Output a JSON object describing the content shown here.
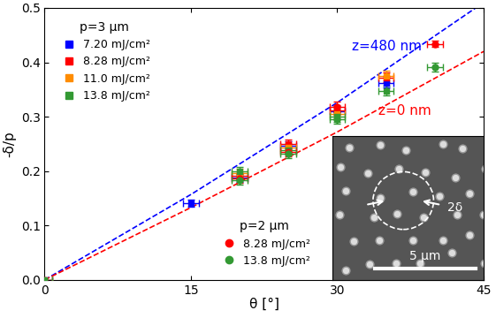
{
  "chart_data": {
    "type": "scatter",
    "x_label": "θ [°]",
    "y_label": "-δ/p",
    "xlim": [
      0,
      45
    ],
    "xticks": [
      0,
      15,
      30,
      45
    ],
    "ylim": [
      0.0,
      0.5
    ],
    "yticks": [
      0.0,
      0.1,
      0.2,
      0.3,
      0.4,
      0.5
    ],
    "groups": [
      {
        "title": "p=3 μm",
        "legend": "upper left",
        "marker": "square",
        "series": [
          {
            "name": "7.20 mJ/cm²",
            "color": "#0000ff",
            "x": [
              0,
              15,
              20,
              25,
              30,
              35
            ],
            "values": [
              0.0,
              0.141,
              0.188,
              0.246,
              0.31,
              0.362
            ],
            "xerr": [
              0.8,
              0.8,
              0.8,
              0.8,
              0.8,
              0.8
            ],
            "yerr": [
              0.003,
              0.006,
              0.008,
              0.008,
              0.009,
              0.009
            ]
          },
          {
            "name": "8.28 mJ/cm²",
            "color": "#ff0000",
            "x": [
              0,
              20,
              25,
              30,
              35
            ],
            "values": [
              0.0,
              0.192,
              0.25,
              0.312,
              0.372
            ],
            "xerr": [
              0.8,
              0.8,
              0.8,
              0.8,
              0.8
            ],
            "yerr": [
              0.003,
              0.008,
              0.008,
              0.009,
              0.009
            ]
          },
          {
            "name": "11.0 mJ/cm²",
            "color": "#ff8c00",
            "x": [
              0,
              20,
              25,
              30,
              35
            ],
            "values": [
              0.0,
              0.196,
              0.244,
              0.305,
              0.375
            ],
            "xerr": [
              0.8,
              0.8,
              0.8,
              0.8,
              0.8
            ],
            "yerr": [
              0.003,
              0.008,
              0.008,
              0.009,
              0.009
            ]
          },
          {
            "name": "13.8 mJ/cm²",
            "color": "#339933",
            "x": [
              0,
              20,
              25,
              30,
              35
            ],
            "values": [
              0.0,
              0.199,
              0.238,
              0.3,
              0.348
            ],
            "xerr": [
              0.8,
              0.8,
              0.8,
              0.8,
              0.8
            ],
            "yerr": [
              0.003,
              0.008,
              0.008,
              0.009,
              0.009
            ]
          }
        ]
      },
      {
        "title": "p=2 μm",
        "legend": "lower center",
        "marker": "circle",
        "series": [
          {
            "name": "8.28 mJ/cm²",
            "color": "#ff0000",
            "x": [
              20,
              25,
              30,
              40
            ],
            "values": [
              0.186,
              0.235,
              0.318,
              0.434
            ],
            "xerr": [
              0.8,
              0.8,
              0.8,
              0.8
            ],
            "yerr": [
              0.008,
              0.008,
              0.009,
              0.006
            ]
          },
          {
            "name": "13.8 mJ/cm²",
            "color": "#339933",
            "x": [
              20,
              25,
              30,
              40
            ],
            "values": [
              0.183,
              0.232,
              0.296,
              0.391
            ],
            "xerr": [
              0.8,
              0.8,
              0.8,
              0.8
            ],
            "yerr": [
              0.008,
              0.008,
              0.009,
              0.008
            ]
          }
        ]
      }
    ],
    "lines": [
      {
        "name": "z=480 nm",
        "color": "#0000ff",
        "line_style": "dashed",
        "x": [
          0,
          15,
          30,
          45
        ],
        "values": [
          0.0,
          0.157,
          0.326,
          0.51
        ]
      },
      {
        "name": "z=0 nm",
        "color": "#ff0000",
        "line_style": "dashed",
        "x": [
          0,
          15,
          30,
          45
        ],
        "values": [
          0.0,
          0.133,
          0.272,
          0.42
        ]
      }
    ],
    "inset": {
      "scale_bar": "5 μm",
      "annotation": "2δ"
    }
  }
}
